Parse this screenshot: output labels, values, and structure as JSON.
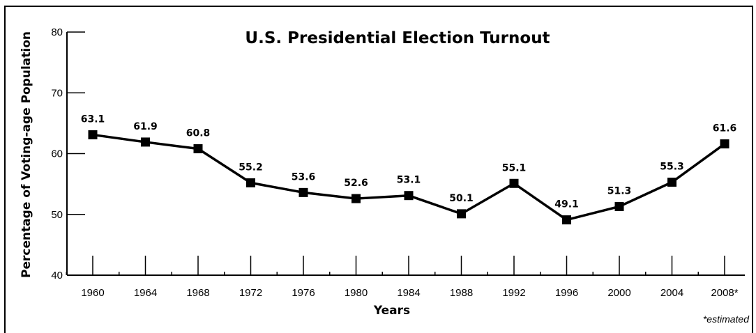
{
  "chart_data": {
    "type": "line",
    "title": "U.S. Presidential Election Turnout",
    "xlabel": "Years",
    "ylabel": "Percentage of Voting-age Population",
    "categories": [
      "1960",
      "1964",
      "1968",
      "1972",
      "1976",
      "1980",
      "1984",
      "1988",
      "1992",
      "1996",
      "2000",
      "2004",
      "2008*"
    ],
    "values": [
      63.1,
      61.9,
      60.8,
      55.2,
      53.6,
      52.6,
      53.1,
      50.1,
      55.1,
      49.1,
      51.3,
      55.3,
      61.6
    ],
    "data_labels": [
      "63.1",
      "61.9",
      "60.8",
      "55.2",
      "53.6",
      "52.6",
      "53.1",
      "50.1",
      "55.1",
      "49.1",
      "51.3",
      "55.3",
      "61.6"
    ],
    "ylim": [
      40,
      80
    ],
    "yticks": [
      40,
      50,
      60,
      70,
      80
    ],
    "ytick_labels": [
      "40",
      "50",
      "60",
      "70",
      "80"
    ],
    "grid": false,
    "marker": "square",
    "line_color": "#000000",
    "footnote": "*estimated"
  }
}
